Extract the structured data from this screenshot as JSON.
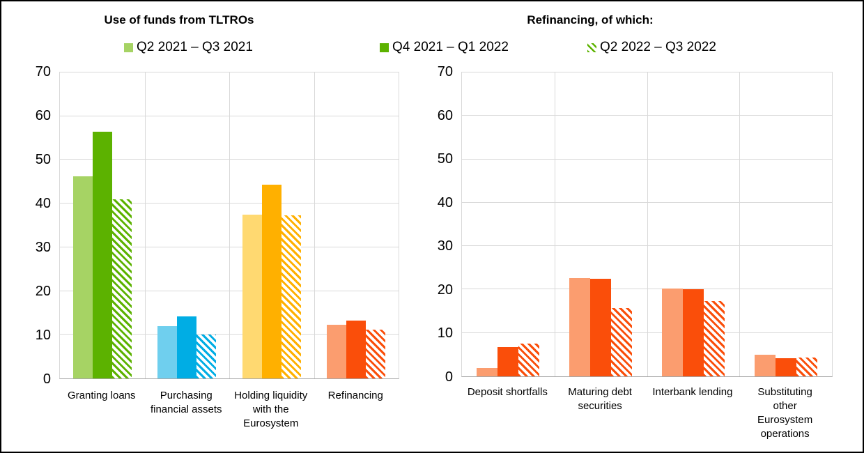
{
  "page": {
    "background": "#ffffff",
    "border_color": "#000000"
  },
  "header": {
    "left_title": "Use of funds from TLTROs",
    "right_title": "Refinancing, of which:"
  },
  "legend": {
    "position": "top",
    "items": [
      {
        "label": "Q2 2021 – Q3 2021",
        "swatch_color": "#A6D364",
        "pattern": "solid"
      },
      {
        "label": "Q4 2021 – Q1 2022",
        "swatch_color": "#5CB200",
        "pattern": "solid"
      },
      {
        "label": "Q2 2022 – Q3 2022",
        "swatch_color": "#5CB200",
        "pattern": "hatch"
      }
    ]
  },
  "colors": {
    "gridline": "#D9D9D9",
    "axis_line": "#A6A6A6",
    "text": "#000000",
    "hatch_background": "#ffffff"
  },
  "chart_data": [
    {
      "type": "bar",
      "title": "Use of funds from TLTROs",
      "categories": [
        "Granting loans",
        "Purchasing financial assets",
        "Holding liquidity with the Eurosystem",
        "Refinancing"
      ],
      "category_labels": [
        "Granting loans",
        "Purchasing\nfinancial assets",
        "Holding liquidity\nwith the\nEurosystem",
        "Refinancing"
      ],
      "series": [
        {
          "name": "Q2 2021 – Q3 2021",
          "style": "solid-light",
          "values": [
            46.3,
            12.0,
            37.5,
            12.3
          ]
        },
        {
          "name": "Q4 2021 – Q1 2022",
          "style": "solid-dark",
          "values": [
            56.5,
            14.2,
            44.3,
            13.3
          ]
        },
        {
          "name": "Q2 2022 – Q3 2022",
          "style": "hatched",
          "values": [
            41.0,
            10.0,
            37.3,
            11.2
          ]
        }
      ],
      "category_colors": [
        {
          "light": "#A6D364",
          "dark": "#5CB200"
        },
        {
          "light": "#6FCFEE",
          "dark": "#00ADE4"
        },
        {
          "light": "#FFD971",
          "dark": "#FFB000"
        },
        {
          "light": "#FB9D6F",
          "dark": "#FA4E0A"
        }
      ],
      "ylim": [
        0,
        70
      ],
      "yticks": [
        0,
        10,
        20,
        30,
        40,
        50,
        60,
        70
      ],
      "grid": "horizontal gridlines + category separator lines, no vertical axis title",
      "legend_position": "top"
    },
    {
      "type": "bar",
      "title": "Refinancing, of which:",
      "categories": [
        "Deposit shortfalls",
        "Maturing debt securities",
        "Interbank lending",
        "Substituting other Eurosystem operations"
      ],
      "category_labels": [
        "Deposit shortfalls",
        "Maturing debt\nsecurities",
        "Interbank lending",
        "Substituting\nother\nEurosystem\noperations"
      ],
      "series": [
        {
          "name": "Q2 2021 – Q3 2021",
          "style": "solid-light",
          "values": [
            2.0,
            22.7,
            20.3,
            4.9
          ]
        },
        {
          "name": "Q4 2021 – Q1 2022",
          "style": "solid-dark",
          "values": [
            6.8,
            22.5,
            20.0,
            4.1
          ]
        },
        {
          "name": "Q2 2022 – Q3 2022",
          "style": "hatched",
          "values": [
            7.5,
            15.7,
            17.3,
            4.3
          ]
        }
      ],
      "category_colors": [
        {
          "light": "#FB9D6F",
          "dark": "#FA4E0A"
        },
        {
          "light": "#FB9D6F",
          "dark": "#FA4E0A"
        },
        {
          "light": "#FB9D6F",
          "dark": "#FA4E0A"
        },
        {
          "light": "#FB9D6F",
          "dark": "#FA4E0A"
        }
      ],
      "ylim": [
        0,
        70
      ],
      "yticks": [
        0,
        10,
        20,
        30,
        40,
        50,
        60,
        70
      ],
      "grid": "horizontal gridlines + category separator lines, no vertical axis title",
      "legend_position": "top"
    }
  ]
}
